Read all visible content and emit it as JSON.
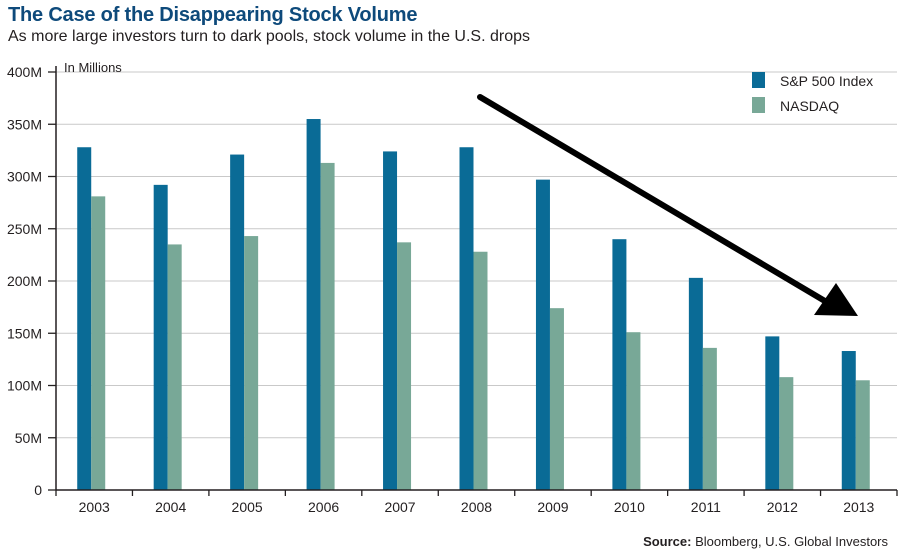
{
  "header": {
    "title": "The Case of the Disappearing Stock Volume",
    "subtitle": "As more large investors turn to dark pools, stock volume in the U.S. drops"
  },
  "footer": {
    "source_label": "Source:",
    "source_text": " Bloomberg, U.S. Global Investors"
  },
  "colors": {
    "sp500": "#0a6b96",
    "nasdaq": "#78a897",
    "title": "#0e4a7b",
    "axis": "#231f20"
  },
  "chart_data": {
    "type": "bar",
    "title": "The Case of the Disappearing Stock Volume",
    "subtitle": "As more large investors turn to dark pools, stock volume in the U.S. drops",
    "ylabel": "In Millions",
    "xlabel": "",
    "categories": [
      "2003",
      "2004",
      "2005",
      "2006",
      "2007",
      "2008",
      "2009",
      "2010",
      "2011",
      "2012",
      "2013"
    ],
    "series": [
      {
        "name": "S&P 500 Index",
        "values": [
          328,
          292,
          321,
          355,
          324,
          328,
          297,
          240,
          203,
          147,
          133
        ]
      },
      {
        "name": "NASDAQ",
        "values": [
          281,
          235,
          243,
          313,
          237,
          228,
          174,
          151,
          136,
          108,
          105
        ]
      }
    ],
    "ylim": [
      0,
      400
    ],
    "yticks": [
      0,
      50,
      100,
      150,
      200,
      250,
      300,
      350,
      400
    ],
    "ytick_labels": [
      "0",
      "50M",
      "100M",
      "150M",
      "200M",
      "250M",
      "300M",
      "350M",
      "400M"
    ],
    "grid": true,
    "legend_position": "top-right",
    "annotation": "downward trend arrow"
  }
}
